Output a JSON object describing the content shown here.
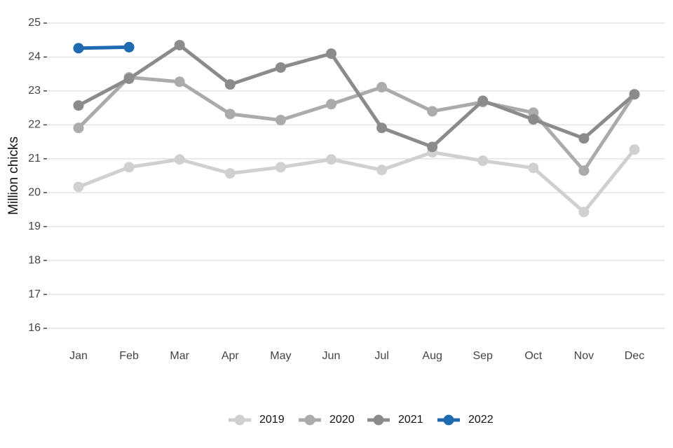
{
  "chart_data": {
    "type": "line",
    "y_label": "Million chicks",
    "categories": [
      "Jan",
      "Feb",
      "Mar",
      "Apr",
      "May",
      "Jun",
      "Jul",
      "Aug",
      "Sep",
      "Oct",
      "Nov",
      "Dec"
    ],
    "series": [
      {
        "name": "2019",
        "color": "#d0d0d0",
        "values": [
          20.17,
          20.75,
          20.98,
          20.57,
          20.75,
          20.98,
          20.67,
          21.19,
          20.94,
          20.73,
          19.43,
          21.27
        ]
      },
      {
        "name": "2020",
        "color": "#ababab",
        "values": [
          21.91,
          23.4,
          23.27,
          22.32,
          22.14,
          22.61,
          23.11,
          22.4,
          22.67,
          22.36,
          20.65,
          22.9
        ]
      },
      {
        "name": "2021",
        "color": "#8c8a8c",
        "values": [
          22.57,
          23.36,
          24.35,
          23.19,
          23.69,
          24.1,
          21.91,
          21.35,
          22.71,
          22.16,
          21.6,
          22.9
        ]
      },
      {
        "name": "2022",
        "color": "#1f6ab0",
        "values": [
          24.26,
          24.29,
          null,
          null,
          null,
          null,
          null,
          null,
          null,
          null,
          null,
          null
        ]
      }
    ],
    "ylim": [
      16,
      25
    ],
    "yticks": [
      16,
      17,
      18,
      19,
      20,
      21,
      22,
      23,
      24,
      25
    ],
    "grid": true,
    "legend": "bottom"
  }
}
